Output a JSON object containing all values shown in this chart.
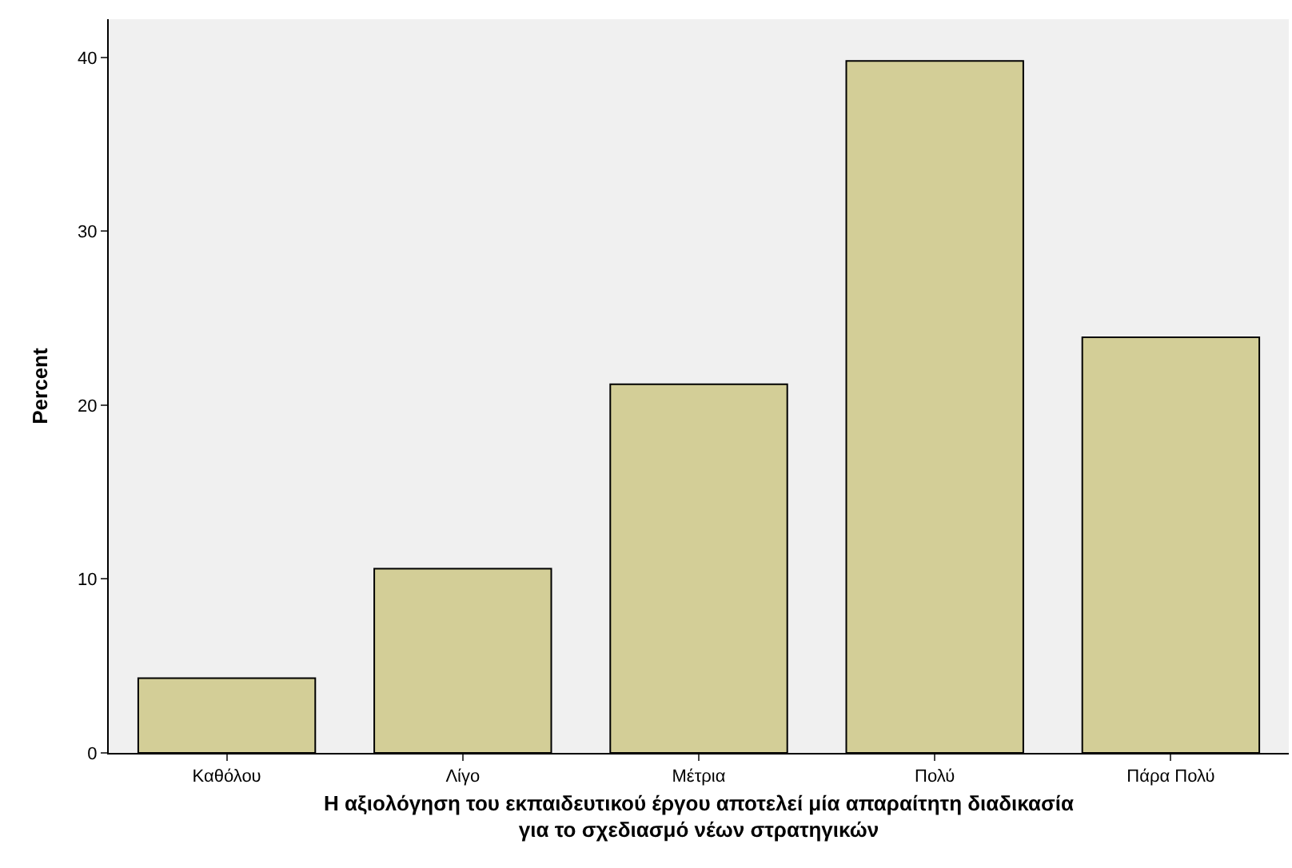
{
  "chart_data": {
    "type": "bar",
    "categories": [
      "Καθόλου",
      "Λίγο",
      "Μέτρια",
      "Πολύ",
      "Πάρα Πολύ"
    ],
    "values": [
      4.3,
      10.6,
      21.2,
      39.8,
      23.9
    ],
    "color": "#d3ce97",
    "xlabel": "Η αξιολόγηση του εκπαιδευτικού έργου αποτελεί μία απαραίτητη διαδικασία\nγια το σχεδιασμό νέων στρατηγικών",
    "ylabel": "Percent",
    "ylim": [
      0,
      42.2
    ],
    "yticks": [
      0,
      10,
      20,
      30,
      40
    ],
    "grid": false
  }
}
